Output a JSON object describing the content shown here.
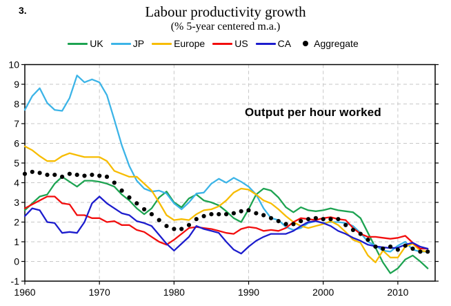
{
  "figure_number": "3.",
  "title": "Labour productivity growth",
  "subtitle": "(% 5-year centered m.a.)",
  "annotation": "Output per hour worked",
  "chart_data": {
    "type": "line",
    "title": "Labour productivity growth",
    "subtitle": "(% 5-year centered m.a.)",
    "annotation": "Output per hour worked",
    "xlabel": "",
    "ylabel": "",
    "xlim": [
      1960,
      2015
    ],
    "ylim": [
      -1,
      10
    ],
    "x_ticks": [
      1960,
      1970,
      1980,
      1990,
      2000,
      2010
    ],
    "y_ticks": [
      -1,
      0,
      1,
      2,
      3,
      4,
      5,
      6,
      7,
      8,
      9,
      10
    ],
    "grid": true,
    "legend_position": "top",
    "years": [
      1960,
      1961,
      1962,
      1963,
      1964,
      1965,
      1966,
      1967,
      1968,
      1969,
      1970,
      1971,
      1972,
      1973,
      1974,
      1975,
      1976,
      1977,
      1978,
      1979,
      1980,
      1981,
      1982,
      1983,
      1984,
      1985,
      1986,
      1987,
      1988,
      1989,
      1990,
      1991,
      1992,
      1993,
      1994,
      1995,
      1996,
      1997,
      1998,
      1999,
      2000,
      2001,
      2002,
      2003,
      2004,
      2005,
      2006,
      2007,
      2008,
      2009,
      2010,
      2011,
      2012,
      2013,
      2014
    ],
    "series": [
      {
        "name": "UK",
        "color": "#1da351",
        "style": "line",
        "values": [
          2.6,
          2.95,
          3.3,
          3.4,
          3.95,
          4.3,
          4.05,
          3.8,
          4.1,
          4.1,
          4.05,
          3.95,
          3.8,
          3.4,
          3.1,
          2.7,
          2.4,
          2.7,
          3.25,
          3.55,
          3.0,
          2.75,
          3.2,
          3.4,
          3.1,
          3.0,
          2.85,
          2.55,
          2.2,
          2.0,
          2.65,
          3.4,
          3.7,
          3.6,
          3.25,
          2.75,
          2.5,
          2.75,
          2.6,
          2.55,
          2.6,
          2.7,
          2.6,
          2.55,
          2.5,
          2.2,
          1.45,
          0.7,
          -0.05,
          -0.6,
          -0.35,
          0.1,
          0.3,
          0.0,
          -0.35
        ]
      },
      {
        "name": "JP",
        "color": "#3cb4e7",
        "style": "line",
        "values": [
          7.7,
          8.4,
          8.8,
          8.05,
          7.7,
          7.65,
          8.3,
          9.45,
          9.1,
          9.25,
          9.1,
          8.45,
          7.2,
          5.9,
          4.85,
          4.1,
          3.7,
          3.55,
          3.6,
          3.45,
          2.95,
          2.65,
          3.0,
          3.45,
          3.5,
          3.95,
          4.2,
          4.0,
          4.25,
          4.05,
          3.8,
          3.4,
          2.7,
          2.2,
          2.1,
          1.75,
          1.6,
          1.7,
          1.95,
          2.05,
          1.95,
          2.0,
          2.0,
          1.95,
          1.8,
          1.45,
          1.0,
          0.8,
          0.55,
          0.5,
          0.8,
          1.0,
          0.6,
          0.5,
          0.5
        ]
      },
      {
        "name": "Europe",
        "color": "#f7bc00",
        "style": "line",
        "values": [
          5.85,
          5.65,
          5.35,
          5.1,
          5.1,
          5.35,
          5.5,
          5.4,
          5.3,
          5.3,
          5.3,
          5.1,
          4.6,
          4.45,
          4.3,
          4.3,
          3.95,
          3.6,
          3.0,
          2.35,
          2.1,
          2.15,
          2.1,
          2.4,
          2.6,
          2.65,
          2.8,
          3.1,
          3.5,
          3.7,
          3.65,
          3.4,
          3.1,
          2.95,
          2.65,
          2.3,
          2.0,
          1.8,
          1.7,
          1.8,
          1.9,
          2.05,
          1.85,
          1.5,
          1.1,
          0.95,
          0.3,
          -0.05,
          0.55,
          0.2,
          0.2,
          0.75,
          0.9,
          0.55,
          0.5
        ]
      },
      {
        "name": "US",
        "color": "#f20d0d",
        "style": "line",
        "values": [
          2.7,
          2.9,
          3.1,
          3.3,
          3.3,
          2.95,
          2.9,
          2.35,
          2.35,
          2.2,
          2.2,
          2.0,
          2.05,
          1.85,
          1.85,
          1.6,
          1.5,
          1.25,
          1.0,
          0.85,
          1.1,
          1.4,
          1.7,
          1.75,
          1.7,
          1.65,
          1.55,
          1.45,
          1.4,
          1.65,
          1.75,
          1.7,
          1.55,
          1.6,
          1.55,
          1.7,
          2.0,
          2.2,
          2.15,
          2.1,
          2.2,
          2.25,
          2.15,
          2.1,
          1.7,
          1.4,
          1.25,
          1.25,
          1.2,
          1.15,
          1.2,
          1.3,
          0.95,
          0.65,
          0.65
        ]
      },
      {
        "name": "CA",
        "color": "#1c1ccd",
        "style": "line",
        "values": [
          2.3,
          2.7,
          2.6,
          2.0,
          1.95,
          1.45,
          1.5,
          1.45,
          2.0,
          2.95,
          3.3,
          2.95,
          2.7,
          2.45,
          2.35,
          2.05,
          1.95,
          1.8,
          1.35,
          0.9,
          0.55,
          0.9,
          1.25,
          1.8,
          1.65,
          1.55,
          1.45,
          1.0,
          0.6,
          0.4,
          0.75,
          1.05,
          1.25,
          1.4,
          1.4,
          1.4,
          1.55,
          1.8,
          2.0,
          2.05,
          1.95,
          1.8,
          1.55,
          1.4,
          1.2,
          1.05,
          0.85,
          0.77,
          0.72,
          0.68,
          0.7,
          0.85,
          0.95,
          0.75,
          0.65
        ]
      },
      {
        "name": "Aggregate",
        "color": "#000000",
        "style": "dots",
        "values": [
          4.45,
          4.55,
          4.5,
          4.4,
          4.4,
          4.3,
          4.45,
          4.4,
          4.35,
          4.4,
          4.35,
          4.3,
          4.0,
          3.6,
          3.25,
          2.95,
          2.65,
          2.4,
          2.1,
          1.8,
          1.65,
          1.65,
          1.85,
          2.15,
          2.3,
          2.4,
          2.4,
          2.4,
          2.45,
          2.55,
          2.6,
          2.45,
          2.35,
          2.2,
          2.05,
          1.9,
          1.9,
          2.05,
          2.15,
          2.2,
          2.15,
          2.15,
          2.15,
          1.85,
          1.6,
          1.4,
          1.1,
          0.75,
          0.65,
          0.75,
          0.6,
          0.8,
          0.65,
          0.5,
          0.5
        ]
      }
    ]
  }
}
